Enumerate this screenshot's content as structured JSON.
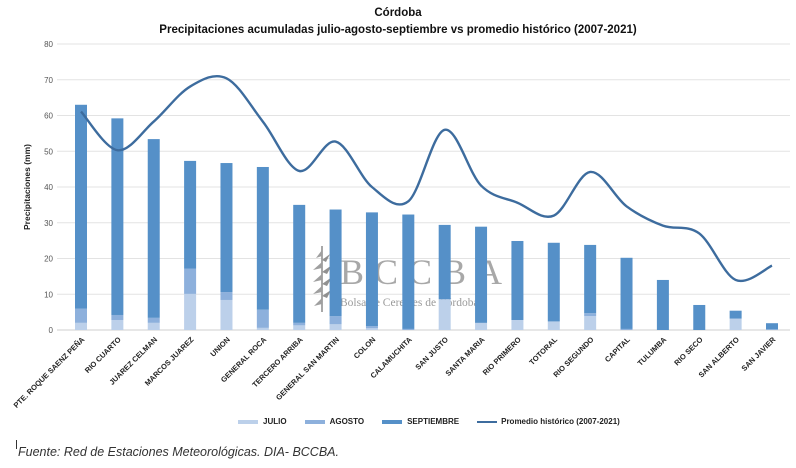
{
  "chart_data": {
    "type": "bar",
    "stacked": true,
    "title": "Córdoba",
    "subtitle": "Precipitaciones acumuladas julio-agosto-septiembre vs promedio histórico (2007-2021)",
    "xlabel": "",
    "ylabel": "Precipitaciones (mm)",
    "ylim": [
      0,
      80
    ],
    "yticks": [
      0,
      10,
      20,
      30,
      40,
      50,
      60,
      70,
      80
    ],
    "grid": true,
    "legend_position": "bottom",
    "categories": [
      "PTE. ROQUE SAENZ PEÑA",
      "RIO CUARTO",
      "JUAREZ CELMAN",
      "MARCOS JUAREZ",
      "UNION",
      "GENERAL ROCA",
      "TERCERO ARRIBA",
      "GENERAL SAN MARTIN",
      "COLON",
      "CALAMUCHITA",
      "SAN JUSTO",
      "SANTA MARIA",
      "RIO PRIMERO",
      "TOTORAL",
      "RIO SEGUNDO",
      "CAPITAL",
      "TULUMBA",
      "RIO SECO",
      "SAN ALBERTO",
      "SAN JAVIER"
    ],
    "series": [
      {
        "name": "JULIO",
        "kind": "bar",
        "color": "#bcd0ea",
        "values": [
          2.0,
          2.8,
          2.0,
          10.1,
          8.4,
          0.6,
          1.3,
          1.6,
          0.5,
          0.0,
          8.6,
          2.0,
          2.8,
          2.4,
          3.9,
          0.0,
          0.0,
          0.0,
          3.2,
          0.0
        ]
      },
      {
        "name": "AGOSTO",
        "kind": "bar",
        "color": "#8db0dc",
        "values": [
          4.0,
          1.4,
          1.4,
          7.1,
          2.2,
          5.1,
          0.7,
          2.3,
          0.6,
          0.3,
          0.0,
          0.0,
          0.0,
          0.0,
          0.8,
          0.3,
          0.0,
          0.0,
          0.0,
          0.2
        ]
      },
      {
        "name": "SEPTIEMBRE",
        "kind": "bar",
        "color": "#5590c8",
        "values": [
          57.0,
          55.0,
          50.0,
          30.1,
          36.1,
          39.9,
          33.0,
          29.8,
          31.8,
          32.0,
          20.8,
          26.9,
          22.1,
          22.0,
          19.1,
          19.9,
          14.0,
          7.0,
          2.2,
          1.7
        ]
      },
      {
        "name": "Promedio histórico (2007-2021)",
        "kind": "line",
        "color": "#3d6c9e",
        "values": [
          61.1,
          50.3,
          58.3,
          68.1,
          70.4,
          58.3,
          44.5,
          52.7,
          40.0,
          36.0,
          56.0,
          40.4,
          35.6,
          32.0,
          44.2,
          34.6,
          29.2,
          27.0,
          14.0,
          18.0
        ]
      }
    ]
  },
  "watermark": {
    "logo_text": "BCCBA",
    "logo_subtext": "Bolsa de Cereales de Córdoba"
  },
  "source": "Fuente: Red de Estaciones Meteorológicas. DIA- BCCBA."
}
